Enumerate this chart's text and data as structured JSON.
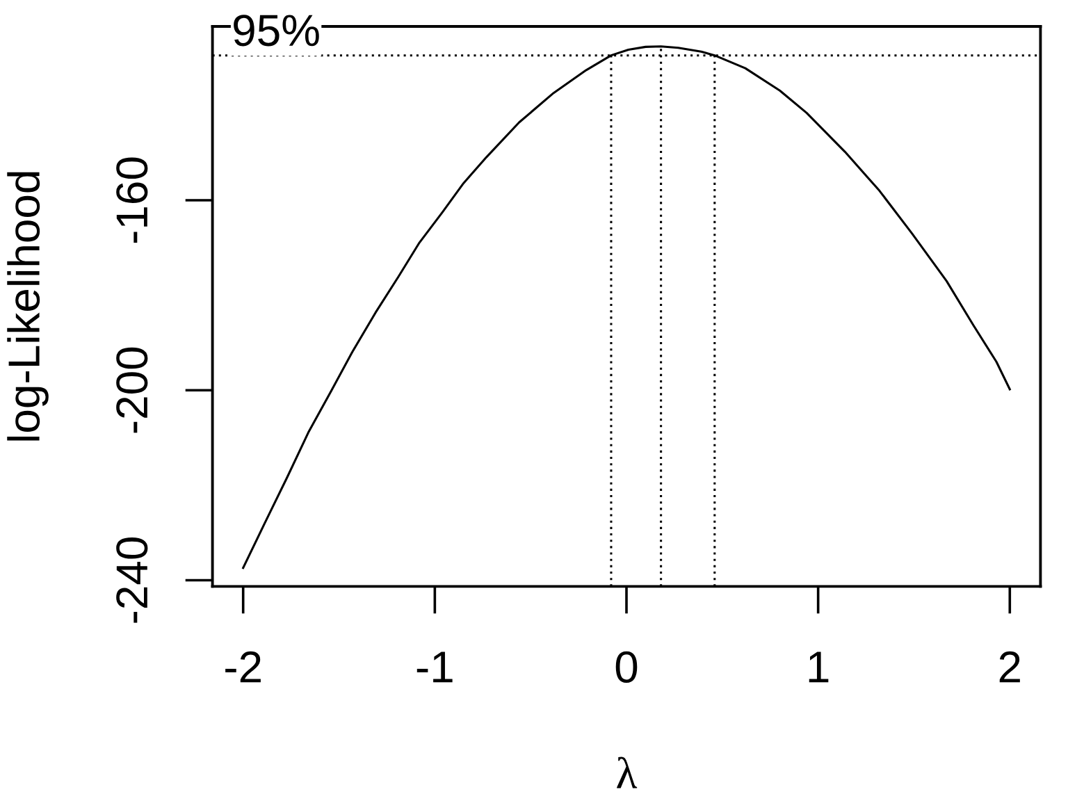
{
  "chart_data": {
    "type": "line",
    "xlabel": "λ",
    "ylabel": "log-Likelihood",
    "color": "#000000",
    "marker": "none",
    "line_style": "solid",
    "x": [
      -2.0,
      -1.89,
      -1.77,
      -1.66,
      -1.54,
      -1.43,
      -1.31,
      -1.19,
      -1.08,
      -0.96,
      -0.85,
      -0.73,
      -0.56,
      -0.38,
      -0.21,
      -0.08,
      0.01,
      0.1,
      0.18,
      0.27,
      0.39,
      0.46,
      0.62,
      0.8,
      0.94,
      1.14,
      1.32,
      1.49,
      1.67,
      1.81,
      1.93,
      2.0
    ],
    "values": [
      -237.4,
      -228.2,
      -218.3,
      -208.9,
      -200.1,
      -191.9,
      -183.7,
      -176.1,
      -168.9,
      -162.5,
      -156.4,
      -150.9,
      -143.6,
      -137.4,
      -132.6,
      -129.5,
      -128.3,
      -127.7,
      -127.6,
      -127.9,
      -128.7,
      -129.5,
      -132.2,
      -136.9,
      -141.6,
      -149.8,
      -158.0,
      -167.0,
      -177.0,
      -186.3,
      -194.0,
      -199.8
    ],
    "xlim": [
      -2.16,
      2.16
    ],
    "ylim": [
      -241.3,
      -123.4
    ],
    "xticks": [
      -2,
      -1,
      0,
      1,
      2
    ],
    "yticks": [
      -240,
      -200,
      -160
    ],
    "ref_lines": [
      {
        "axis": "y",
        "value": -129.5,
        "line_style": "dotted",
        "color": "#000000"
      },
      {
        "axis": "x",
        "value": -0.08,
        "line_style": "dotted",
        "color": "#000000"
      },
      {
        "axis": "x",
        "value": 0.18,
        "line_style": "dotted",
        "color": "#000000"
      },
      {
        "axis": "x",
        "value": 0.46,
        "line_style": "dotted",
        "color": "#000000"
      }
    ],
    "annotations": [
      {
        "text": "95%",
        "x": -2.06,
        "y": -129.5
      }
    ]
  }
}
